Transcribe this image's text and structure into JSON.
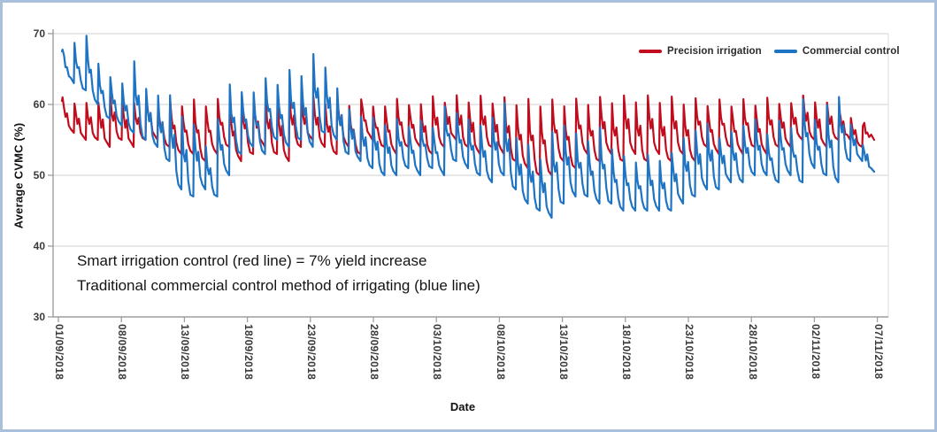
{
  "frame": {
    "border_color": "#a9c0dc",
    "background": "#ffffff"
  },
  "axes": {
    "y_title": "Average CVMC (%)",
    "x_title": "Date"
  },
  "annotation": {
    "line1": "Smart irrigation control (red line) = 7% yield increase",
    "line2": "Traditional commercial control method of irrigating (blue line)"
  },
  "chart_data": {
    "type": "line",
    "title": "",
    "xlabel": "Date",
    "ylabel": "Average CVMC (%)",
    "ylim": [
      30,
      70
    ],
    "yticks": [
      30,
      40,
      50,
      60,
      70
    ],
    "xtick_labels": [
      "01/09/2018",
      "08/09/2018",
      "13/09/2018",
      "18/09/2018",
      "23/09/2018",
      "28/09/2018",
      "03/10/2018",
      "08/10/2018",
      "13/10/2018",
      "18/10/2018",
      "23/10/2018",
      "28/10/2018",
      "02/11/2018",
      "07/11/2018"
    ],
    "grid": "horizontal gridlines at each 10 units",
    "legend_position": "top-right inside plot",
    "pattern": "daily irrigation sawtooth: sharp rise to daily peak then gradual decay to daily trough; arrays below give per-day peak/trough envelope read from the plot, day 0 = 01/09/2018 .. day 67 = 07/11/2018",
    "colors": {
      "precision": "#c00c1c",
      "commercial": "#1e73c3"
    },
    "series": [
      {
        "name": "Precision irrigation",
        "color": "#c00c1c",
        "daily_peaks": [
          61,
          60,
          60,
          60,
          61,
          60,
          60,
          61,
          60,
          61,
          60,
          61,
          60,
          61,
          60,
          61,
          60,
          61,
          60,
          61,
          60,
          61,
          60,
          61,
          60,
          61,
          60,
          60,
          61,
          60,
          60,
          61,
          60,
          61,
          60,
          61,
          60,
          61,
          60,
          61,
          60,
          61,
          60,
          61,
          60,
          61,
          60,
          61,
          60,
          61,
          60,
          61,
          60,
          61,
          60,
          61,
          60,
          61,
          60,
          61,
          60,
          60,
          61,
          60,
          60,
          59,
          58,
          57
        ],
        "daily_troughs": [
          56,
          55,
          55,
          54,
          55,
          54,
          55,
          55,
          54,
          53,
          53,
          52,
          53,
          54,
          52,
          53,
          54,
          53,
          52,
          54,
          55,
          54,
          53,
          54,
          53,
          55,
          54,
          53,
          54,
          54,
          53,
          54,
          55,
          54,
          53,
          54,
          53,
          52,
          51,
          50,
          50,
          52,
          51,
          53,
          52,
          53,
          52,
          53,
          52,
          53,
          52,
          53,
          52,
          54,
          53,
          54,
          53,
          54,
          53,
          54,
          54,
          55,
          55,
          54,
          55,
          55,
          54,
          55
        ]
      },
      {
        "name": "Commercial control",
        "color": "#1e73c3",
        "daily_peaks": [
          68,
          69,
          70,
          66,
          64,
          63,
          66,
          62,
          61,
          61,
          58,
          57,
          54,
          58,
          63,
          62,
          62,
          64,
          63,
          65,
          64,
          67,
          65,
          62,
          59,
          58,
          58,
          57,
          58,
          57,
          58,
          57,
          60,
          59,
          58,
          57,
          58,
          60,
          55,
          54,
          52,
          56,
          57,
          56,
          55,
          57,
          54,
          53,
          52,
          53,
          52,
          53,
          55,
          56,
          57,
          55,
          56,
          57,
          58,
          56,
          58,
          57,
          61,
          58,
          60,
          61,
          57,
          54
        ],
        "daily_troughs": [
          63,
          62,
          60,
          58,
          57,
          56,
          55,
          54,
          52,
          48,
          47,
          48,
          47,
          50,
          53,
          54,
          53,
          55,
          54,
          55,
          54,
          56,
          55,
          53,
          52,
          51,
          50,
          50,
          51,
          50,
          51,
          50,
          52,
          51,
          50,
          49,
          50,
          48,
          46,
          45,
          44,
          46,
          47,
          47,
          46,
          46,
          45,
          45,
          45,
          45,
          45,
          46,
          47,
          48,
          48,
          49,
          49,
          50,
          50,
          49,
          50,
          49,
          51,
          50,
          49,
          52,
          52,
          50.5
        ]
      }
    ]
  },
  "legend": {
    "items": [
      {
        "label": "Precision irrigation",
        "color": "#c00c1c"
      },
      {
        "label": "Commercial control",
        "color": "#1e73c3"
      }
    ]
  }
}
